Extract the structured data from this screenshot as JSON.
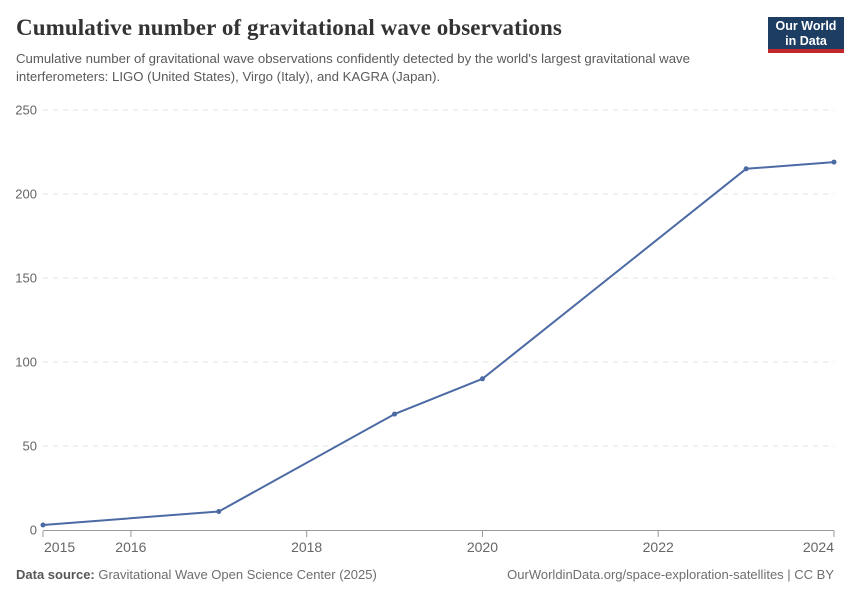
{
  "header": {
    "title": "Cumulative number of gravitational wave observations",
    "subtitle": "Cumulative number of gravitational wave observations confidently detected by the world's largest gravitational wave interferometers: LIGO (United States), Virgo (Italy), and KAGRA (Japan).",
    "logo": {
      "line1": "Our World",
      "line2": "in Data",
      "bg_color": "#1d3d63",
      "bar_color": "#c0282d"
    }
  },
  "chart_data": {
    "type": "line",
    "title": "Cumulative number of gravitational wave observations",
    "x": [
      2015,
      2017,
      2019,
      2020,
      2023,
      2024
    ],
    "series": [
      {
        "name": "Cumulative gravitational wave observations",
        "values": [
          3,
          11,
          69,
          90,
          215,
          219
        ]
      }
    ],
    "xlabel": "",
    "ylabel": "",
    "xlim": [
      2015,
      2024
    ],
    "ylim": [
      0,
      250
    ],
    "x_ticks": [
      2015,
      2016,
      2018,
      2020,
      2022,
      2024
    ],
    "y_ticks": [
      0,
      50,
      100,
      150,
      200,
      250
    ],
    "grid": "horizontal dashed",
    "legend": "none",
    "line_color": "#4c6aa3",
    "marker": "circle"
  },
  "footer": {
    "datasource_label": "Data source:",
    "datasource_value": " Gravitational Wave Open Science Center (2025)",
    "attribution": "OurWorldinData.org/space-exploration-satellites | CC BY"
  }
}
